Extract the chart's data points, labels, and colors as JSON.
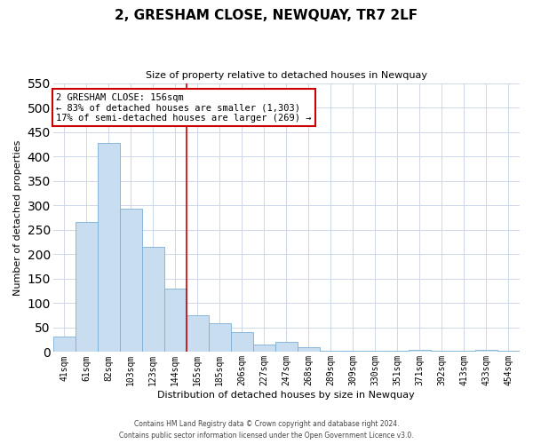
{
  "title": "2, GRESHAM CLOSE, NEWQUAY, TR7 2LF",
  "subtitle": "Size of property relative to detached houses in Newquay",
  "xlabel": "Distribution of detached houses by size in Newquay",
  "ylabel": "Number of detached properties",
  "categories": [
    "41sqm",
    "61sqm",
    "82sqm",
    "103sqm",
    "123sqm",
    "144sqm",
    "165sqm",
    "185sqm",
    "206sqm",
    "227sqm",
    "247sqm",
    "268sqm",
    "289sqm",
    "309sqm",
    "330sqm",
    "351sqm",
    "371sqm",
    "392sqm",
    "413sqm",
    "433sqm",
    "454sqm"
  ],
  "values": [
    32,
    265,
    428,
    293,
    215,
    130,
    76,
    59,
    40,
    15,
    20,
    10,
    2,
    2,
    2,
    2,
    5,
    2,
    2,
    4,
    2
  ],
  "bar_color": "#c8ddf0",
  "bar_edge_color": "#7ab0d4",
  "marker_label": "2 GRESHAM CLOSE: 156sqm",
  "annotation_line1": "← 83% of detached houses are smaller (1,303)",
  "annotation_line2": "17% of semi-detached houses are larger (269) →",
  "annotation_box_color": "#ffffff",
  "annotation_box_edge_color": "#cc0000",
  "marker_line_color": "#cc0000",
  "ylim": [
    0,
    550
  ],
  "yticks": [
    0,
    50,
    100,
    150,
    200,
    250,
    300,
    350,
    400,
    450,
    500,
    550
  ],
  "footer_line1": "Contains HM Land Registry data © Crown copyright and database right 2024.",
  "footer_line2": "Contains public sector information licensed under the Open Government Licence v3.0.",
  "background_color": "#ffffff",
  "grid_color": "#d0d8e8",
  "title_fontsize": 11,
  "subtitle_fontsize": 8,
  "axis_label_fontsize": 8,
  "tick_fontsize": 7
}
